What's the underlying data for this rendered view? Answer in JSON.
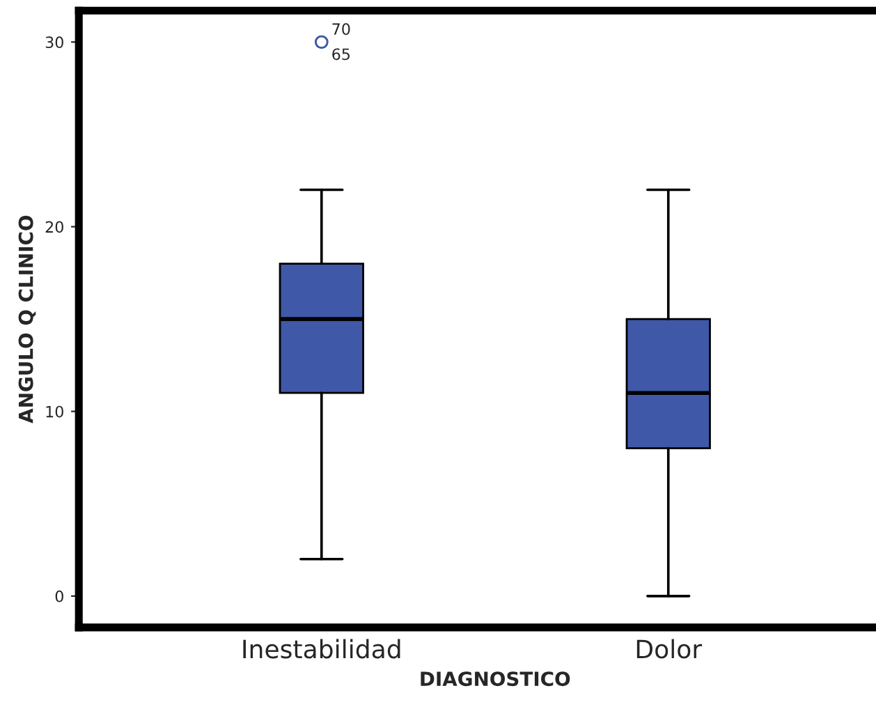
{
  "chart_data": {
    "type": "box",
    "xlabel": "DIAGNOSTICO",
    "ylabel": "ANGULO Q CLINICO",
    "categories": [
      "Inestabilidad",
      "Dolor"
    ],
    "color": "#3f58a8",
    "boxes": [
      {
        "low": 2,
        "q1": 11,
        "median": 15,
        "q3": 18,
        "high": 22,
        "outliers": [
          30,
          30
        ]
      },
      {
        "low": 0,
        "q1": 8,
        "median": 11,
        "q3": 15,
        "high": 22
      }
    ],
    "ylim": [
      -1.7,
      31.7
    ],
    "yticks": [
      0,
      10,
      20,
      30
    ],
    "annotations": [
      "70",
      "65"
    ],
    "grid": false
  }
}
